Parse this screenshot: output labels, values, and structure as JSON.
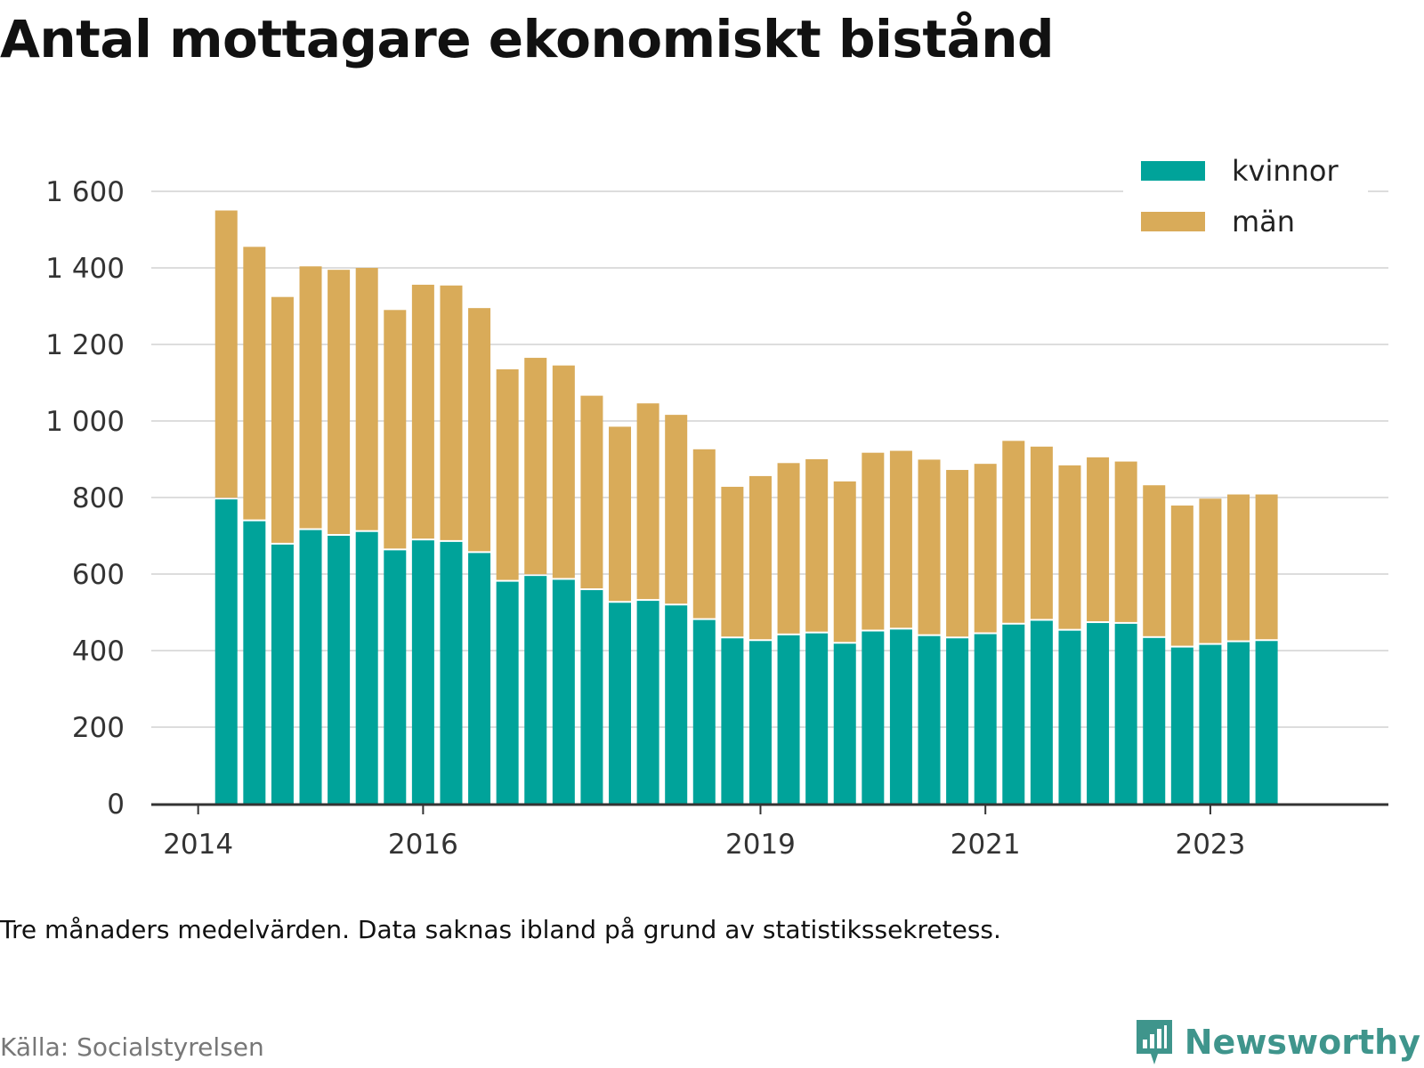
{
  "title": "Antal mottagare ekonomiskt bistånd",
  "note": "Tre månaders medelvärden. Data saknas ibland på grund av statistikssekretess.",
  "source": "Källa: Socialstyrelsen",
  "brand": "Newsworthy",
  "icons": {
    "brand_logo": "newsworthy-logo-icon"
  },
  "colors": {
    "kvinnor": "#00a39a",
    "man": "#d9ab59",
    "grid": "#dddddd",
    "axis": "#333333"
  },
  "chart_data": {
    "type": "bar",
    "stacked": true,
    "x_tick_labels": [
      "2014",
      "2016",
      "2019",
      "2021",
      "2023"
    ],
    "x_tick_positions": [
      "2014",
      "2016",
      "2019",
      "2021",
      "2023"
    ],
    "x_range": [
      "2013-08",
      "2024-08"
    ],
    "ylim": [
      0,
      1600
    ],
    "y_ticks": [
      0,
      200,
      400,
      600,
      800,
      1000,
      1200,
      1400,
      1600
    ],
    "y_tick_labels": [
      "0",
      "200",
      "400",
      "600",
      "800",
      "1 000",
      "1 200",
      "1 400",
      "1 600"
    ],
    "grid": true,
    "legend_position": "top-right",
    "x": [
      "2014-04",
      "2014-07",
      "2014-10",
      "2015-01",
      "2015-04",
      "2015-07",
      "2015-10",
      "2016-01",
      "2016-04",
      "2016-07",
      "2016-10",
      "2017-01",
      "2017-04",
      "2017-07",
      "2017-10",
      "2018-01",
      "2018-04",
      "2018-07",
      "2018-10",
      "2019-01",
      "2019-04",
      "2019-07",
      "2019-10",
      "2020-01",
      "2020-04",
      "2020-07",
      "2020-10",
      "2021-01",
      "2021-04",
      "2021-07",
      "2021-10",
      "2022-01",
      "2022-04",
      "2022-07",
      "2022-10",
      "2023-01",
      "2023-04",
      "2023-07"
    ],
    "series": [
      {
        "name": "kvinnor",
        "values": [
          795,
          738,
          677,
          715,
          700,
          710,
          662,
          688,
          684,
          655,
          580,
          595,
          585,
          558,
          525,
          530,
          518,
          480,
          432,
          425,
          440,
          445,
          418,
          450,
          455,
          438,
          432,
          443,
          468,
          478,
          452,
          472,
          470,
          433,
          408,
          415,
          422,
          425
        ]
      },
      {
        "name": "män",
        "values": [
          755,
          717,
          647,
          689,
          695,
          690,
          628,
          668,
          670,
          640,
          555,
          570,
          560,
          508,
          460,
          516,
          498,
          446,
          396,
          431,
          450,
          455,
          424,
          467,
          467,
          461,
          440,
          445,
          480,
          455,
          432,
          433,
          424,
          399,
          371,
          382,
          386,
          383
        ]
      }
    ]
  }
}
